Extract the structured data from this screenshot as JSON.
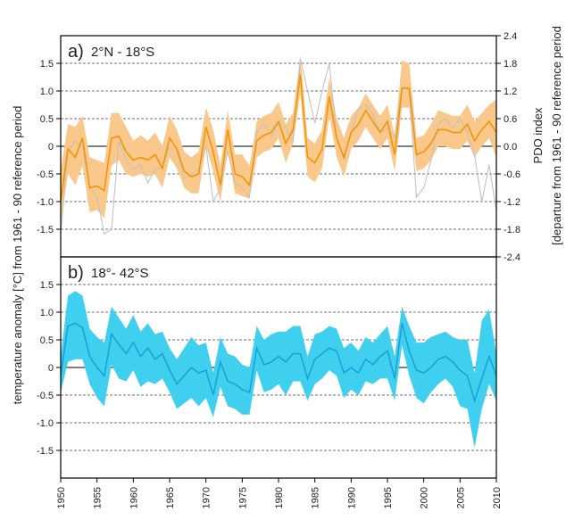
{
  "chart_data": [
    {
      "type": "line",
      "panel_letter": "a)",
      "panel_range": "2°N - 18°S",
      "ylabel_left": "temperature anomaly [°C] from 1961 - 90 reference period",
      "ylabel_right_line1": "PDO index",
      "ylabel_right_line2": "[departure from 1961 - 90 reference period",
      "ylim": [
        -2.0,
        2.0
      ],
      "yticks_left": [
        -1.5,
        -1.0,
        -0.5,
        0,
        0.5,
        1.0,
        1.5
      ],
      "yticks_left_labels": [
        "-1.5",
        "-1.0",
        "-0.5",
        "0",
        "0.5",
        "1.0",
        "1.5"
      ],
      "y2lim": [
        -2.4,
        2.4
      ],
      "yticks_right": [
        -2.4,
        -1.8,
        -1.2,
        -0.6,
        0.0,
        0.6,
        1.2,
        1.8,
        2.4
      ],
      "yticks_right_labels": [
        "-2.4",
        "-1.8",
        "-1.2",
        "-0.6",
        "0.0",
        "0.6",
        "1.2",
        "1.8",
        "2.4"
      ],
      "x": [
        1950,
        1951,
        1952,
        1953,
        1954,
        1955,
        1956,
        1957,
        1958,
        1959,
        1960,
        1961,
        1962,
        1963,
        1964,
        1965,
        1966,
        1967,
        1968,
        1969,
        1970,
        1971,
        1972,
        1973,
        1974,
        1975,
        1976,
        1977,
        1978,
        1979,
        1980,
        1981,
        1982,
        1983,
        1984,
        1985,
        1986,
        1987,
        1988,
        1989,
        1990,
        1991,
        1992,
        1993,
        1994,
        1995,
        1996,
        1997,
        1998,
        1999,
        2000,
        2001,
        2002,
        2003,
        2004,
        2005,
        2006,
        2007,
        2008,
        2009,
        2010
      ],
      "series": [
        {
          "color": "#f39200",
          "band_color": "#f9c88a",
          "values": [
            -1.0,
            -0.05,
            -0.2,
            0.15,
            -0.75,
            -0.72,
            -0.8,
            0.15,
            0.18,
            -0.1,
            -0.25,
            -0.2,
            -0.25,
            -0.15,
            -0.4,
            0.15,
            -0.05,
            -0.45,
            -0.55,
            -0.5,
            0.35,
            -0.1,
            -0.7,
            0.3,
            -0.5,
            -0.55,
            -0.7,
            0.1,
            0.2,
            0.25,
            0.45,
            0.05,
            0.3,
            1.3,
            -0.2,
            -0.3,
            -0.05,
            0.9,
            0.15,
            -0.2,
            0.25,
            0.4,
            0.65,
            0.45,
            0.25,
            0.45,
            -0.15,
            1.05,
            1.05,
            -0.15,
            -0.1,
            0.05,
            0.3,
            0.3,
            0.25,
            0.25,
            0.4,
            0.1,
            0.3,
            0.45,
            0.25
          ],
          "band_low": [
            -1.4,
            -0.5,
            -0.7,
            -0.35,
            -1.2,
            -1.15,
            -1.3,
            -0.35,
            -0.25,
            -0.5,
            -0.55,
            -0.5,
            -0.55,
            -0.5,
            -0.75,
            -0.2,
            -0.4,
            -0.75,
            -0.85,
            -0.85,
            0.0,
            -0.45,
            -1.0,
            -0.05,
            -0.85,
            -0.9,
            -0.95,
            -0.2,
            -0.1,
            -0.05,
            0.15,
            -0.3,
            0.05,
            0.95,
            -0.55,
            -0.65,
            -0.4,
            0.55,
            -0.2,
            -0.55,
            -0.05,
            0.1,
            0.35,
            0.15,
            -0.05,
            0.15,
            -0.45,
            0.7,
            0.7,
            -0.45,
            -0.4,
            -0.25,
            0.0,
            0.0,
            -0.05,
            -0.05,
            0.1,
            -0.2,
            0.0,
            0.15,
            -0.2
          ],
          "band_high": [
            -0.45,
            0.4,
            0.35,
            0.55,
            -0.2,
            -0.25,
            -0.3,
            0.6,
            0.6,
            0.35,
            0.1,
            0.2,
            0.1,
            0.25,
            0.0,
            0.55,
            0.3,
            -0.1,
            -0.2,
            -0.1,
            0.7,
            0.3,
            -0.35,
            0.65,
            -0.15,
            -0.15,
            -0.35,
            0.45,
            0.55,
            0.6,
            0.8,
            0.4,
            0.6,
            1.65,
            0.15,
            0.05,
            0.3,
            1.25,
            0.5,
            0.15,
            0.55,
            0.7,
            0.95,
            0.75,
            0.55,
            0.75,
            0.2,
            1.55,
            1.5,
            0.15,
            0.2,
            0.4,
            0.65,
            0.6,
            0.55,
            0.55,
            0.75,
            0.45,
            0.6,
            0.75,
            0.85
          ]
        },
        {
          "axis": "right",
          "color": "#c2c2c2",
          "values": [
            -1.9,
            -0.1,
            0.1,
            0.0,
            -0.9,
            -1.1,
            -1.9,
            -1.8,
            0.1,
            -0.3,
            -0.5,
            -0.4,
            -0.8,
            -0.5,
            -0.45,
            0.0,
            -0.1,
            -0.7,
            -0.6,
            -0.5,
            0.0,
            -1.2,
            -0.9,
            -0.1,
            -0.8,
            -0.9,
            -1.1,
            0.3,
            0.5,
            0.2,
            0.5,
            0.4,
            0.1,
            1.9,
            1.2,
            0.5,
            1.2,
            1.8,
            0.2,
            -0.3,
            0.3,
            0.8,
            0.9,
            0.7,
            0.3,
            0.4,
            0.2,
            1.3,
            1.2,
            -1.1,
            -0.9,
            -0.3,
            0.5,
            0.6,
            0.4,
            0.6,
            0.3,
            -0.2,
            -1.2,
            -0.4,
            -1.4
          ]
        }
      ]
    },
    {
      "type": "line",
      "panel_letter": "b)",
      "panel_range": "18°- 42°S",
      "ylim": [
        -2.0,
        2.0
      ],
      "yticks_left": [
        -1.5,
        -1.0,
        -0.5,
        0,
        0.5,
        1.0,
        1.5
      ],
      "yticks_left_labels": [
        "-1.5",
        "-1.0",
        "-0.5",
        "0",
        "0.5",
        "1.0",
        "1.5"
      ],
      "x": [
        1950,
        1951,
        1952,
        1953,
        1954,
        1955,
        1956,
        1957,
        1958,
        1959,
        1960,
        1961,
        1962,
        1963,
        1964,
        1965,
        1966,
        1967,
        1968,
        1969,
        1970,
        1971,
        1972,
        1973,
        1974,
        1975,
        1976,
        1977,
        1978,
        1979,
        1980,
        1981,
        1982,
        1983,
        1984,
        1985,
        1986,
        1987,
        1988,
        1989,
        1990,
        1991,
        1992,
        1993,
        1994,
        1995,
        1996,
        1997,
        1998,
        1999,
        2000,
        2001,
        2002,
        2003,
        2004,
        2005,
        2006,
        2007,
        2008,
        2009,
        2010
      ],
      "xticks": [
        1950,
        1955,
        1960,
        1965,
        1970,
        1975,
        1980,
        1985,
        1990,
        1995,
        2000,
        2005,
        2010
      ],
      "series": [
        {
          "color": "#1a9fd4",
          "band_color": "#3fd0f0",
          "values": [
            -0.15,
            0.75,
            0.8,
            0.72,
            0.2,
            0.0,
            -0.15,
            0.6,
            0.42,
            0.25,
            0.45,
            0.2,
            0.35,
            0.15,
            0.25,
            -0.05,
            -0.3,
            -0.15,
            0.0,
            -0.1,
            -0.05,
            -0.5,
            0.1,
            -0.25,
            -0.3,
            -0.4,
            -0.45,
            0.35,
            0.05,
            0.1,
            0.2,
            0.1,
            0.25,
            0.25,
            -0.2,
            0.15,
            0.25,
            0.35,
            0.3,
            -0.1,
            0.0,
            -0.1,
            0.15,
            0.05,
            0.2,
            0.3,
            -0.2,
            0.8,
            0.3,
            -0.05,
            -0.1,
            0.0,
            0.15,
            0.2,
            0.1,
            -0.05,
            -0.15,
            -0.6,
            -0.2,
            0.2,
            -0.15
          ],
          "band_low": [
            -0.45,
            0.1,
            0.15,
            0.15,
            -0.3,
            -0.55,
            -0.7,
            0.05,
            -0.2,
            -0.25,
            -0.05,
            -0.35,
            -0.25,
            -0.3,
            -0.2,
            -0.45,
            -0.75,
            -0.65,
            -0.55,
            -0.7,
            -0.55,
            -0.9,
            -0.35,
            -0.7,
            -0.75,
            -0.85,
            -0.85,
            -0.05,
            -0.45,
            -0.4,
            -0.3,
            -0.5,
            -0.25,
            -0.25,
            -0.6,
            -0.3,
            -0.2,
            -0.05,
            -0.15,
            -0.55,
            -0.4,
            -0.5,
            -0.25,
            -0.3,
            -0.2,
            -0.2,
            -0.6,
            0.4,
            -0.15,
            -0.55,
            -0.65,
            -0.45,
            -0.3,
            -0.2,
            -0.35,
            -0.7,
            -0.75,
            -1.45,
            -0.75,
            -0.3,
            -0.6
          ],
          "band_high": [
            0.2,
            1.3,
            1.38,
            1.3,
            0.7,
            0.55,
            0.45,
            1.1,
            0.9,
            0.7,
            0.95,
            0.65,
            0.8,
            0.6,
            0.65,
            0.35,
            0.15,
            0.35,
            0.55,
            0.4,
            0.45,
            -0.1,
            0.55,
            0.25,
            0.2,
            0.05,
            0.0,
            0.75,
            0.5,
            0.6,
            0.65,
            0.65,
            0.75,
            0.75,
            0.2,
            0.6,
            0.65,
            0.75,
            0.7,
            0.35,
            0.45,
            0.3,
            0.55,
            0.45,
            0.6,
            0.75,
            0.2,
            1.1,
            0.75,
            0.45,
            0.45,
            0.55,
            0.6,
            0.65,
            0.55,
            0.5,
            0.5,
            -0.1,
            0.85,
            1.05,
            0.25
          ]
        }
      ]
    }
  ]
}
